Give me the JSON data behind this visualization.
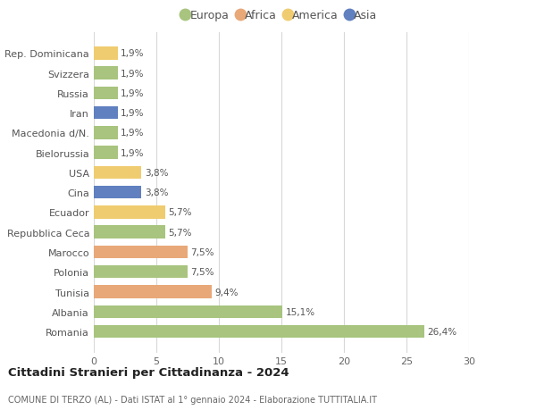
{
  "categories": [
    "Romania",
    "Albania",
    "Tunisia",
    "Polonia",
    "Marocco",
    "Repubblica Ceca",
    "Ecuador",
    "Cina",
    "USA",
    "Bielorussia",
    "Macedonia d/N.",
    "Iran",
    "Russia",
    "Svizzera",
    "Rep. Dominicana"
  ],
  "values": [
    26.4,
    15.1,
    9.4,
    7.5,
    7.5,
    5.7,
    5.7,
    3.8,
    3.8,
    1.9,
    1.9,
    1.9,
    1.9,
    1.9,
    1.9
  ],
  "labels": [
    "26,4%",
    "15,1%",
    "9,4%",
    "7,5%",
    "7,5%",
    "5,7%",
    "5,7%",
    "3,8%",
    "3,8%",
    "1,9%",
    "1,9%",
    "1,9%",
    "1,9%",
    "1,9%",
    "1,9%"
  ],
  "continents": [
    "Europa",
    "Europa",
    "Africa",
    "Europa",
    "Africa",
    "Europa",
    "America",
    "Asia",
    "America",
    "Europa",
    "Europa",
    "Asia",
    "Europa",
    "Europa",
    "America"
  ],
  "colors": {
    "Europa": "#a8c47e",
    "Africa": "#e8a878",
    "America": "#f0cc70",
    "Asia": "#6080c0"
  },
  "legend_order": [
    "Europa",
    "Africa",
    "America",
    "Asia"
  ],
  "title": "Cittadini Stranieri per Cittadinanza - 2024",
  "subtitle": "COMUNE DI TERZO (AL) - Dati ISTAT al 1° gennaio 2024 - Elaborazione TUTTITALIA.IT",
  "xlim": [
    0,
    30
  ],
  "xticks": [
    0,
    5,
    10,
    15,
    20,
    25,
    30
  ],
  "background_color": "#ffffff",
  "grid_color": "#d8d8d8"
}
